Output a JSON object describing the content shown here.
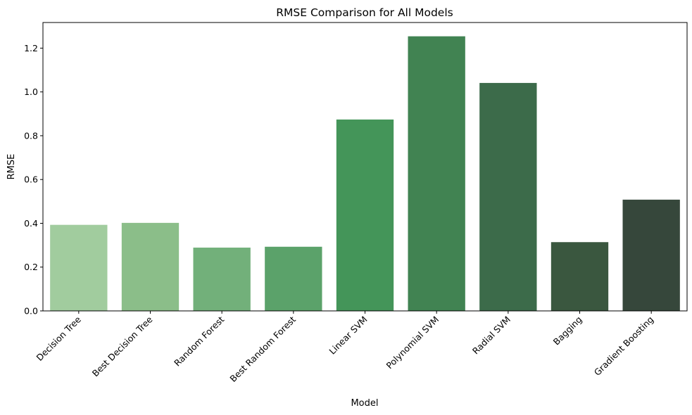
{
  "chart_data": {
    "type": "bar",
    "title": "RMSE Comparison for All Models",
    "xlabel": "Model",
    "ylabel": "RMSE",
    "categories": [
      "Decision Tree",
      "Best Decision Tree",
      "Random Forest",
      "Best Random Forest",
      "Linear SVM",
      "Polynomial SVM",
      "Radial SVM",
      "Bagging",
      "Gradient Boosting"
    ],
    "values": [
      0.393,
      0.402,
      0.289,
      0.293,
      0.874,
      1.254,
      1.041,
      0.314,
      0.508
    ],
    "colors": [
      "#a1cc9e",
      "#8bbe89",
      "#72b07a",
      "#5ba26a",
      "#449559",
      "#418352",
      "#3c6b4a",
      "#3a573f",
      "#36473b"
    ],
    "ylim": [
      0,
      1.317
    ],
    "yticks": [
      "0.0",
      "0.2",
      "0.4",
      "0.6",
      "0.8",
      "1.0",
      "1.2"
    ],
    "grid": false,
    "legend": "none"
  }
}
